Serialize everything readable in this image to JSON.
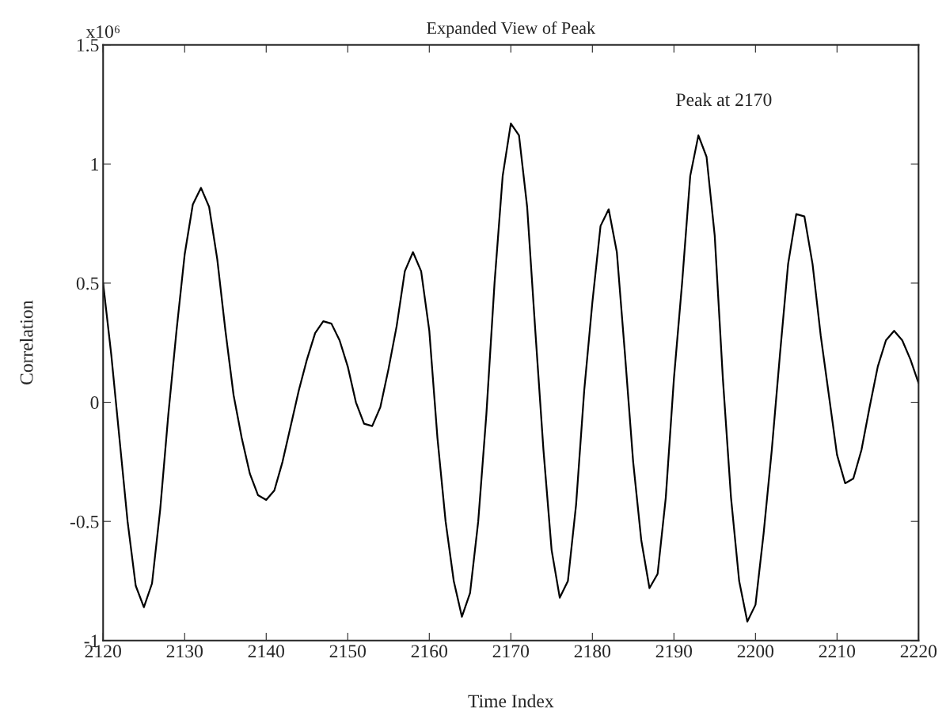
{
  "chart_data": {
    "type": "line",
    "title": "Expanded View of Peak",
    "xlabel": "Time Index",
    "ylabel": "Correlation",
    "x": [
      2120,
      2121,
      2122,
      2123,
      2124,
      2125,
      2126,
      2127,
      2128,
      2129,
      2130,
      2131,
      2132,
      2133,
      2134,
      2135,
      2136,
      2137,
      2138,
      2139,
      2140,
      2141,
      2142,
      2143,
      2144,
      2145,
      2146,
      2147,
      2148,
      2149,
      2150,
      2151,
      2152,
      2153,
      2154,
      2155,
      2156,
      2157,
      2158,
      2159,
      2160,
      2161,
      2162,
      2163,
      2164,
      2165,
      2166,
      2167,
      2168,
      2169,
      2170,
      2171,
      2172,
      2173,
      2174,
      2175,
      2176,
      2177,
      2178,
      2179,
      2180,
      2181,
      2182,
      2183,
      2184,
      2185,
      2186,
      2187,
      2188,
      2189,
      2190,
      2191,
      2192,
      2193,
      2194,
      2195,
      2196,
      2197,
      2198,
      2199,
      2200,
      2201,
      2202,
      2203,
      2204,
      2205,
      2206,
      2207,
      2208,
      2209,
      2210,
      2211,
      2212,
      2213,
      2214,
      2215,
      2216,
      2217,
      2218,
      2219,
      2220
    ],
    "series": [
      {
        "color": "#000000",
        "values": [
          0.5,
          0.2,
          -0.15,
          -0.5,
          -0.77,
          -0.86,
          -0.76,
          -0.45,
          -0.05,
          0.3,
          0.62,
          0.83,
          0.9,
          0.82,
          0.6,
          0.3,
          0.03,
          -0.15,
          -0.3,
          -0.39,
          -0.41,
          -0.37,
          -0.25,
          -0.1,
          0.05,
          0.18,
          0.29,
          0.34,
          0.33,
          0.26,
          0.15,
          0.0,
          -0.09,
          -0.1,
          -0.02,
          0.14,
          0.32,
          0.55,
          0.63,
          0.55,
          0.3,
          -0.15,
          -0.5,
          -0.75,
          -0.9,
          -0.8,
          -0.5,
          -0.05,
          0.5,
          0.95,
          1.17,
          1.12,
          0.82,
          0.3,
          -0.2,
          -0.62,
          -0.82,
          -0.75,
          -0.43,
          0.05,
          0.42,
          0.74,
          0.81,
          0.63,
          0.2,
          -0.25,
          -0.58,
          -0.78,
          -0.72,
          -0.4,
          0.1,
          0.5,
          0.95,
          1.12,
          1.03,
          0.7,
          0.1,
          -0.4,
          -0.75,
          -0.92,
          -0.85,
          -0.55,
          -0.2,
          0.2,
          0.58,
          0.79,
          0.78,
          0.58,
          0.28,
          0.03,
          -0.22,
          -0.34,
          -0.32,
          -0.2,
          -0.02,
          0.15,
          0.26,
          0.3,
          0.26,
          0.18,
          0.08
        ]
      }
    ],
    "xlim": [
      2120,
      2220
    ],
    "xticks": [
      2120,
      2130,
      2140,
      2150,
      2160,
      2170,
      2180,
      2190,
      2200,
      2210,
      2220
    ],
    "ylim": [
      -1,
      1.5
    ],
    "yticks": [
      -1,
      -0.5,
      0,
      0.5,
      1,
      1.5
    ],
    "grid": false,
    "legend": false,
    "marker": "none",
    "line_style": "solid",
    "annotations": [
      "Peak at 2170",
      "x10⁶"
    ]
  }
}
